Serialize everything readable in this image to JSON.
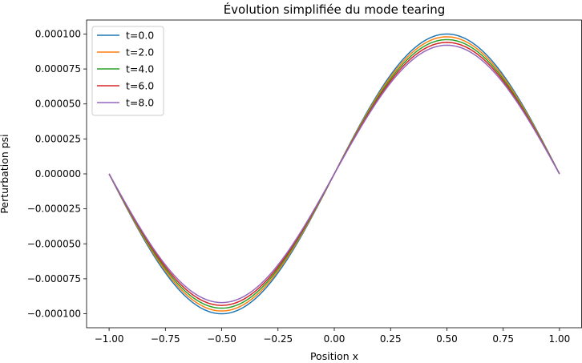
{
  "chart_data": {
    "type": "line",
    "title": "Évolution simplifiée du mode tearing",
    "xlabel": "Position x",
    "ylabel": "Perturbation psi",
    "xlim": [
      -1.1,
      1.1
    ],
    "ylim": [
      -0.00011,
      0.00011
    ],
    "xticks": [
      -1.0,
      -0.75,
      -0.5,
      -0.25,
      0.0,
      0.25,
      0.5,
      0.75,
      1.0
    ],
    "xtick_labels": [
      "−1.00",
      "−0.75",
      "−0.50",
      "−0.25",
      "0.00",
      "0.25",
      "0.50",
      "0.75",
      "1.00"
    ],
    "yticks": [
      -0.0001,
      -7.5e-05,
      -5e-05,
      -2.5e-05,
      0.0,
      2.5e-05,
      5e-05,
      7.5e-05,
      0.0001
    ],
    "ytick_labels": [
      "−0.000100",
      "−0.000075",
      "−0.000050",
      "−0.000025",
      "0.000000",
      "0.000025",
      "0.000050",
      "0.000075",
      "0.000100"
    ],
    "grid": false,
    "legend_position": "top-left",
    "function": "amplitude * sin(pi * x)",
    "x_range": [
      -1.0,
      1.0
    ],
    "series": [
      {
        "name": "t=0.0",
        "amplitude": 0.0001,
        "color": "#1f77b4"
      },
      {
        "name": "t=2.0",
        "amplitude": 9.8e-05,
        "color": "#ff7f0e"
      },
      {
        "name": "t=4.0",
        "amplitude": 9.6e-05,
        "color": "#2ca02c"
      },
      {
        "name": "t=6.0",
        "amplitude": 9.4e-05,
        "color": "#d62728"
      },
      {
        "name": "t=8.0",
        "amplitude": 9.2e-05,
        "color": "#9467bd"
      }
    ]
  }
}
